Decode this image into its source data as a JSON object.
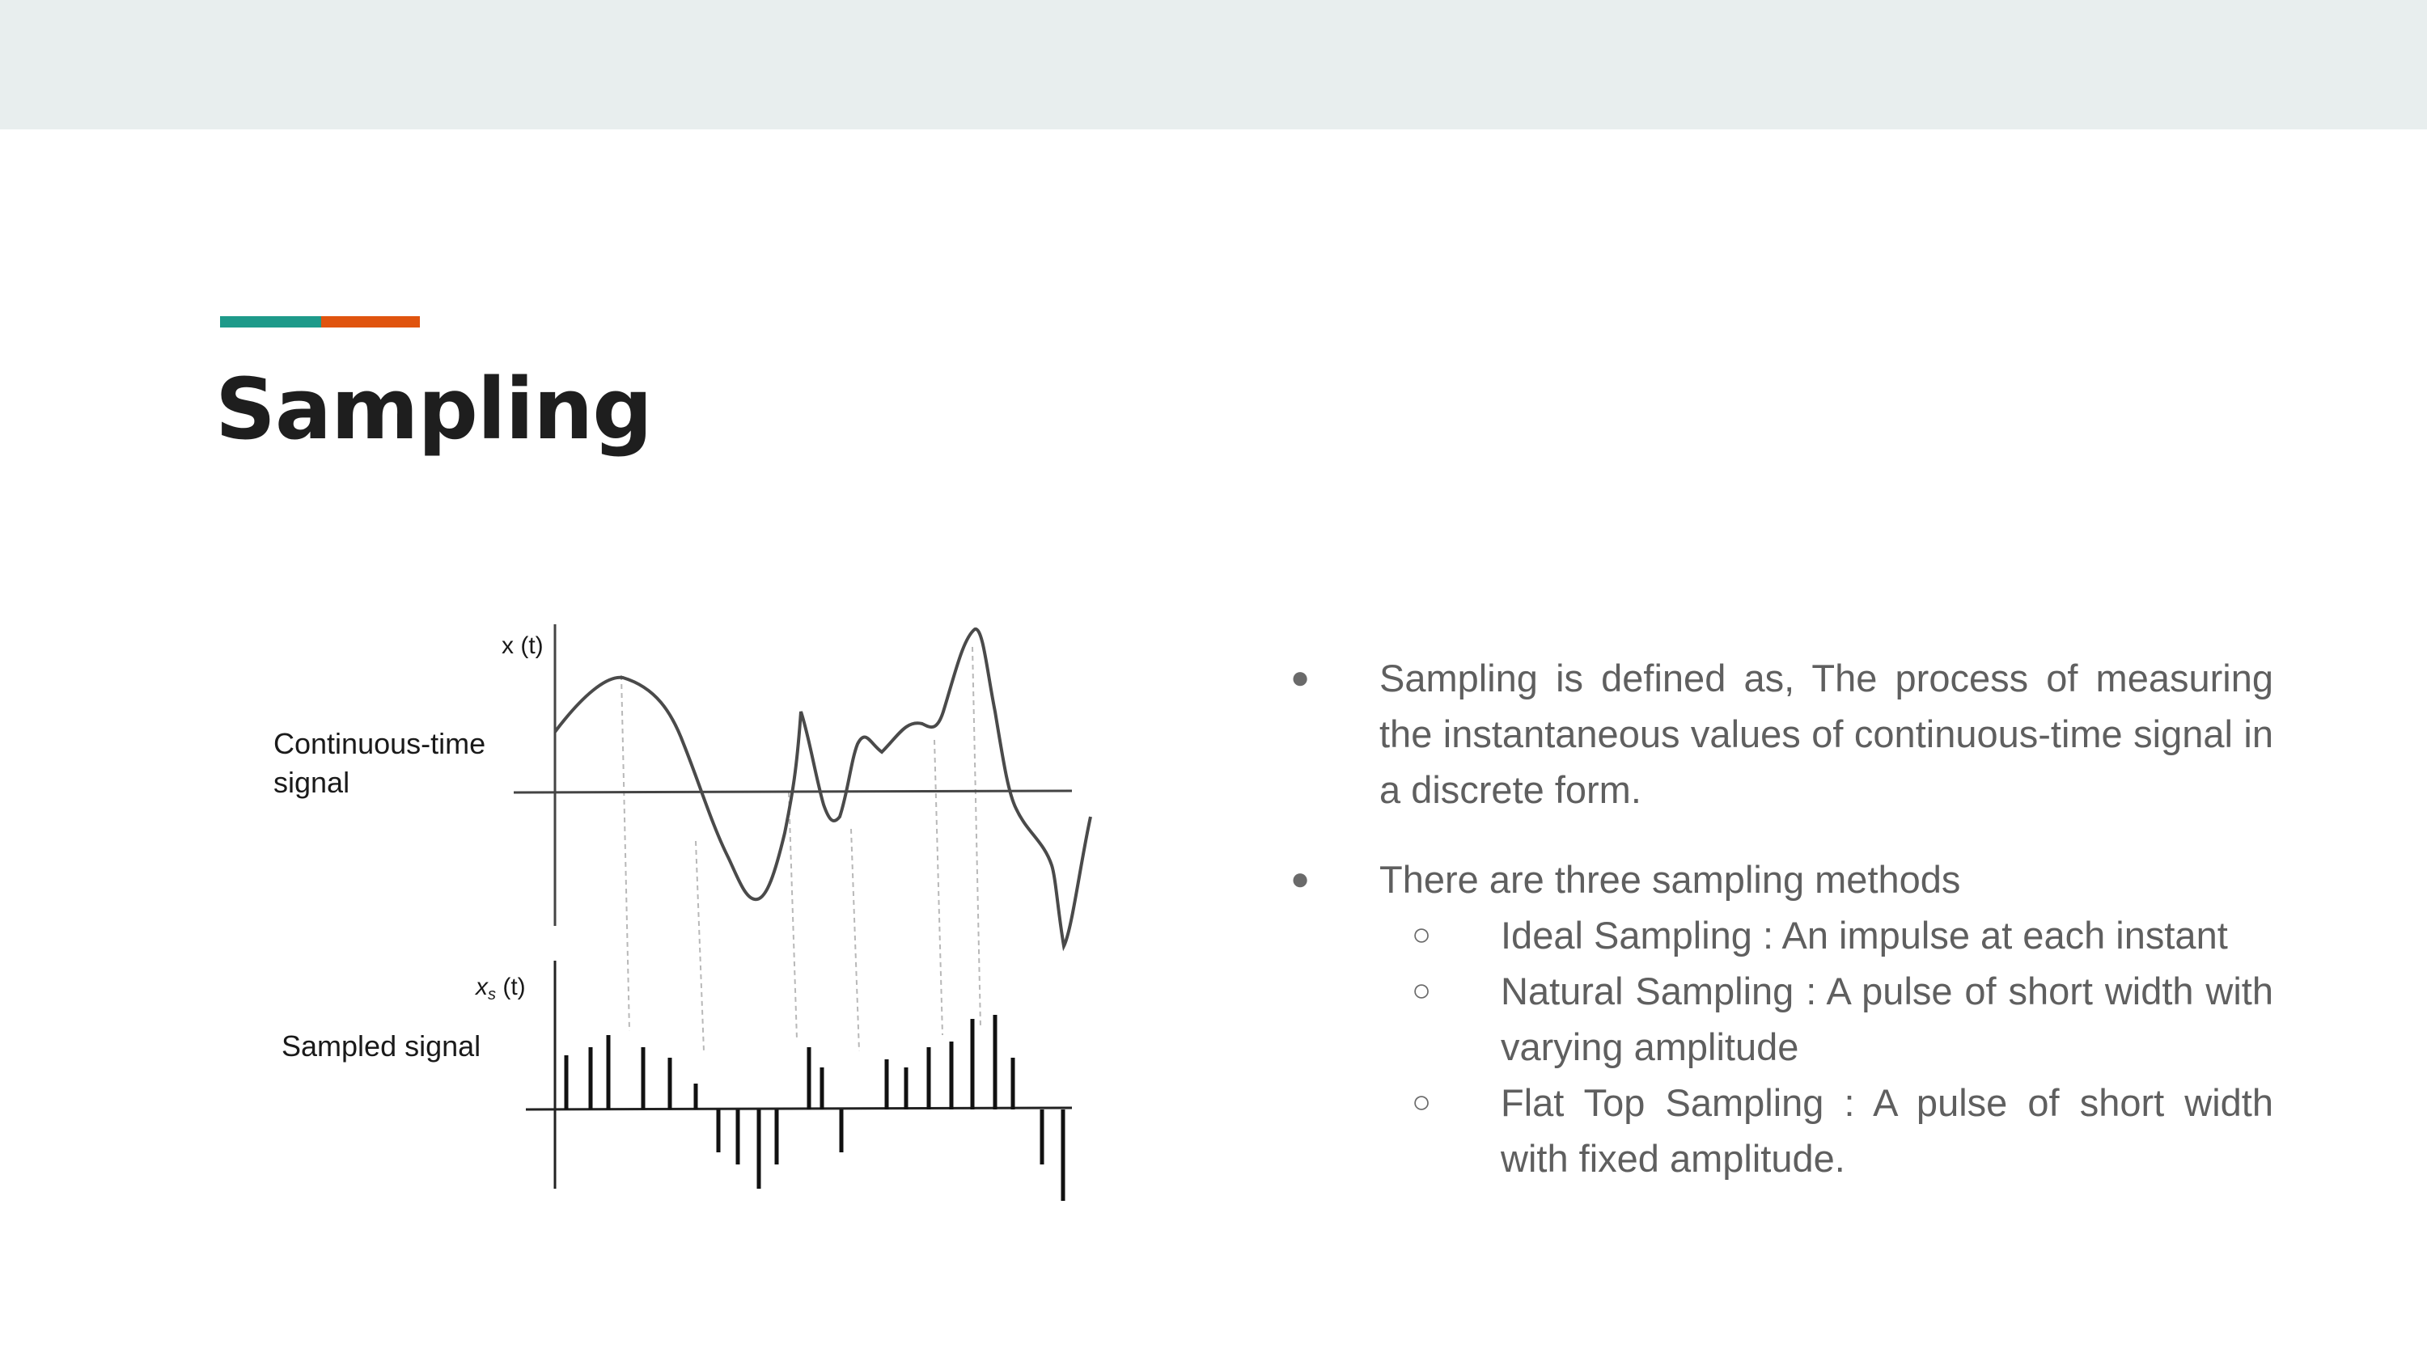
{
  "slide": {
    "title": "Sampling",
    "colors": {
      "band": "#e8eeee",
      "accent_teal": "#1e9a8a",
      "accent_orange": "#e0540e",
      "title": "#1e1e1e",
      "body_text": "#5f5f5f"
    }
  },
  "figure": {
    "continuous_axis_label": "x (t)",
    "continuous_label_line1": "Continuous-time",
    "continuous_label_line2": "signal",
    "sampled_axis_label_main": "x",
    "sampled_axis_label_sub": "s",
    "sampled_axis_label_rest": " (t)",
    "sampled_label": "Sampled signal"
  },
  "bullets": {
    "marker": "●",
    "sub_marker": "○",
    "item1": "Sampling is defined as, The process of measuring the instantaneous values of continuous-time signal in a discrete form.",
    "item2": "There are three sampling methods",
    "methods": [
      "Ideal Sampling : An impulse at each instant",
      "Natural Sampling : A pulse of short width with varying amplitude",
      "Flat Top Sampling : A pulse of short width with fixed amplitude."
    ]
  }
}
